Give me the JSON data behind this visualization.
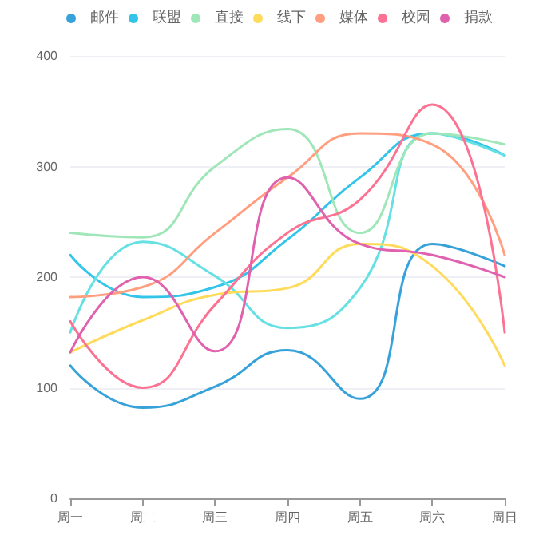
{
  "chart_data": {
    "type": "line",
    "categories": [
      "周一",
      "周二",
      "周三",
      "周四",
      "周五",
      "周六",
      "周日"
    ],
    "series": [
      {
        "name": "邮件",
        "color": "#37a2da",
        "values": [
          120,
          82,
          101,
          134,
          90,
          230,
          210
        ]
      },
      {
        "name": "联盟",
        "color": "#32c5e9",
        "values": [
          220,
          182,
          191,
          234,
          290,
          330,
          310
        ]
      },
      {
        "color": "#67e0e3",
        "values": [
          150,
          232,
          201,
          154,
          190,
          330,
          310
        ]
      },
      {
        "name": "直接",
        "color": "#9fe6b8",
        "values": [
          240,
          236,
          300,
          334,
          240,
          330,
          320
        ]
      },
      {
        "name": "线下",
        "color": "#ffdb5c",
        "values": [
          132,
          161,
          184,
          190,
          230,
          210,
          120
        ]
      },
      {
        "name": "媒体",
        "color": "#ff9f7f",
        "values": [
          182,
          191,
          240,
          290,
          330,
          320,
          220
        ]
      },
      {
        "name": "校园",
        "color": "#fb7293",
        "values": [
          160,
          100,
          175,
          240,
          270,
          356,
          150
        ]
      },
      {
        "name": "捐款",
        "color": "#e062ae",
        "values": [
          132,
          200,
          133,
          290,
          230,
          220,
          200
        ]
      }
    ],
    "ylim": [
      0,
      400
    ],
    "yticks": [
      0,
      100,
      200,
      300,
      400
    ],
    "grid": "y",
    "legend": "top",
    "marker": "none",
    "line_style": "solid"
  }
}
